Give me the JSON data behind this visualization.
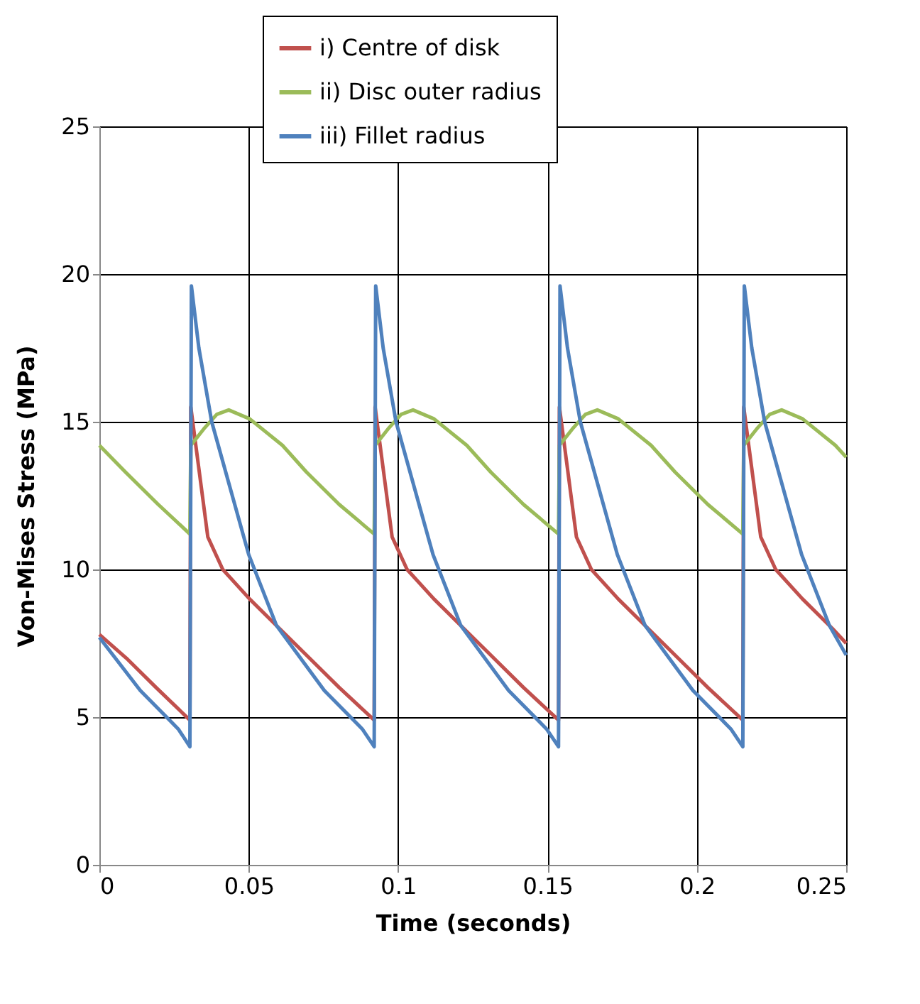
{
  "chart_data": {
    "type": "line",
    "xlabel": "Time (seconds)",
    "ylabel": "Von-Mises Stress (MPa)",
    "xlim": [
      0,
      0.25
    ],
    "xticks": [
      0,
      0.05,
      0.1,
      0.15,
      0.2,
      0.25
    ],
    "ylim": [
      0,
      25
    ],
    "yticks": [
      0,
      5,
      10,
      15,
      20,
      25
    ],
    "grid": true,
    "legend": "top",
    "marker": "none",
    "line_style": "solid",
    "series": [
      {
        "name": "i) Centre of disk",
        "color": "#c0504d",
        "x": [
          0,
          0.009,
          0.019,
          0.0303,
          0.0306,
          0.0363,
          0.0413,
          0.0503,
          0.0603,
          0.0703,
          0.0803,
          0.092,
          0.0923,
          0.098,
          0.103,
          0.112,
          0.122,
          0.132,
          0.142,
          0.1537,
          0.154,
          0.1597,
          0.1647,
          0.1737,
          0.1837,
          0.1937,
          0.2037,
          0.2154,
          0.2157,
          0.2214,
          0.2264,
          0.2354,
          0.2454,
          0.25
        ],
        "values": [
          7.8,
          7.0,
          6.0,
          4.9,
          15.5,
          11.1,
          10.0,
          9.0,
          8.0,
          7.0,
          6.0,
          4.9,
          15.5,
          11.1,
          10.0,
          9.0,
          8.0,
          7.0,
          6.0,
          4.9,
          15.5,
          11.1,
          10.0,
          9.0,
          8.0,
          7.0,
          6.0,
          4.9,
          15.5,
          11.1,
          10.0,
          9.0,
          8.0,
          7.5
        ]
      },
      {
        "name": "ii) Disc outer radius",
        "color": "#9bbb59",
        "x": [
          0,
          0.0087,
          0.0197,
          0.0303,
          0.0306,
          0.0353,
          0.0393,
          0.0433,
          0.0503,
          0.0613,
          0.0693,
          0.0803,
          0.092,
          0.0923,
          0.097,
          0.101,
          0.105,
          0.112,
          0.123,
          0.131,
          0.142,
          0.1537,
          0.154,
          0.1587,
          0.1627,
          0.1667,
          0.1737,
          0.1847,
          0.1927,
          0.2037,
          0.2154,
          0.2157,
          0.2204,
          0.2244,
          0.2284,
          0.2354,
          0.2464,
          0.25
        ],
        "values": [
          14.2,
          13.3,
          12.2,
          11.2,
          14.2,
          14.8,
          15.25,
          15.4,
          15.1,
          14.2,
          13.3,
          12.2,
          11.2,
          14.2,
          14.8,
          15.25,
          15.4,
          15.1,
          14.2,
          13.3,
          12.2,
          11.2,
          14.2,
          14.8,
          15.25,
          15.4,
          15.1,
          14.2,
          13.3,
          12.2,
          11.2,
          14.2,
          14.8,
          15.25,
          15.4,
          15.1,
          14.2,
          13.8
        ]
      },
      {
        "name": "iii) Fillet radius",
        "color": "#4f81bd",
        "x": [
          0,
          0.0137,
          0.0264,
          0.0303,
          0.0308,
          0.0333,
          0.0376,
          0.05,
          0.0593,
          0.0753,
          0.088,
          0.092,
          0.0925,
          0.095,
          0.0993,
          0.1117,
          0.121,
          0.137,
          0.1497,
          0.1537,
          0.1542,
          0.1567,
          0.161,
          0.1734,
          0.1827,
          0.1987,
          0.2114,
          0.2154,
          0.2159,
          0.2184,
          0.2227,
          0.2351,
          0.2444,
          0.25
        ],
        "values": [
          7.7,
          5.9,
          4.6,
          4.0,
          19.6,
          17.5,
          15.0,
          10.5,
          8.1,
          5.9,
          4.6,
          4.0,
          19.6,
          17.5,
          15.0,
          10.5,
          8.1,
          5.9,
          4.6,
          4.0,
          19.6,
          17.5,
          15.0,
          10.5,
          8.1,
          5.9,
          4.6,
          4.0,
          19.6,
          17.5,
          15.0,
          10.5,
          8.1,
          7.1
        ]
      }
    ]
  }
}
